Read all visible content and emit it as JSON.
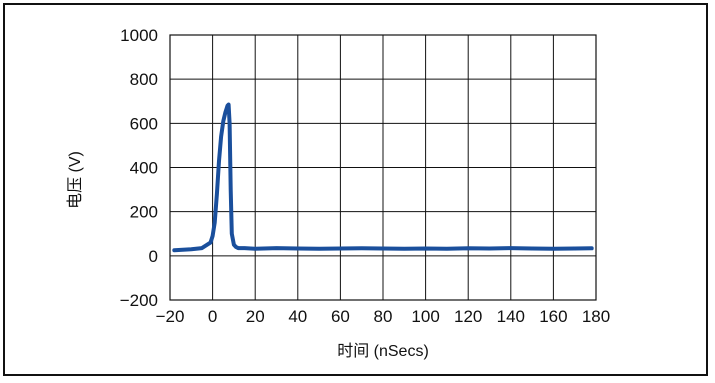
{
  "chart_data": {
    "type": "line",
    "title": "",
    "xlabel": "时间 (nSecs)",
    "ylabel": "电压 (V)",
    "xlim": [
      -20,
      180
    ],
    "ylim": [
      -200,
      1000
    ],
    "xticks": [
      -20,
      0,
      20,
      40,
      60,
      80,
      100,
      120,
      140,
      160,
      180
    ],
    "yticks": [
      -200,
      0,
      200,
      400,
      600,
      800,
      1000
    ],
    "xtick_labels": [
      "−20",
      "0",
      "20",
      "40",
      "60",
      "80",
      "100",
      "120",
      "140",
      "160",
      "180"
    ],
    "ytick_labels": [
      "−200",
      "0",
      "200",
      "400",
      "600",
      "800",
      "1000"
    ],
    "grid": true,
    "series": [
      {
        "color": "#1a4f9c",
        "x": [
          -18,
          -10,
          -5,
          -1,
          0,
          1,
          2,
          3,
          4,
          5,
          6,
          7,
          7.5,
          8,
          8.5,
          9,
          10,
          11,
          12,
          15,
          20,
          30,
          40,
          50,
          60,
          70,
          80,
          90,
          100,
          110,
          120,
          130,
          140,
          150,
          160,
          170,
          178
        ],
        "y": [
          25,
          30,
          35,
          60,
          90,
          150,
          280,
          430,
          540,
          610,
          650,
          680,
          685,
          600,
          300,
          100,
          50,
          40,
          35,
          35,
          32,
          35,
          33,
          32,
          33,
          34,
          33,
          32,
          33,
          32,
          34,
          33,
          35,
          33,
          32,
          33,
          34
        ]
      }
    ]
  }
}
